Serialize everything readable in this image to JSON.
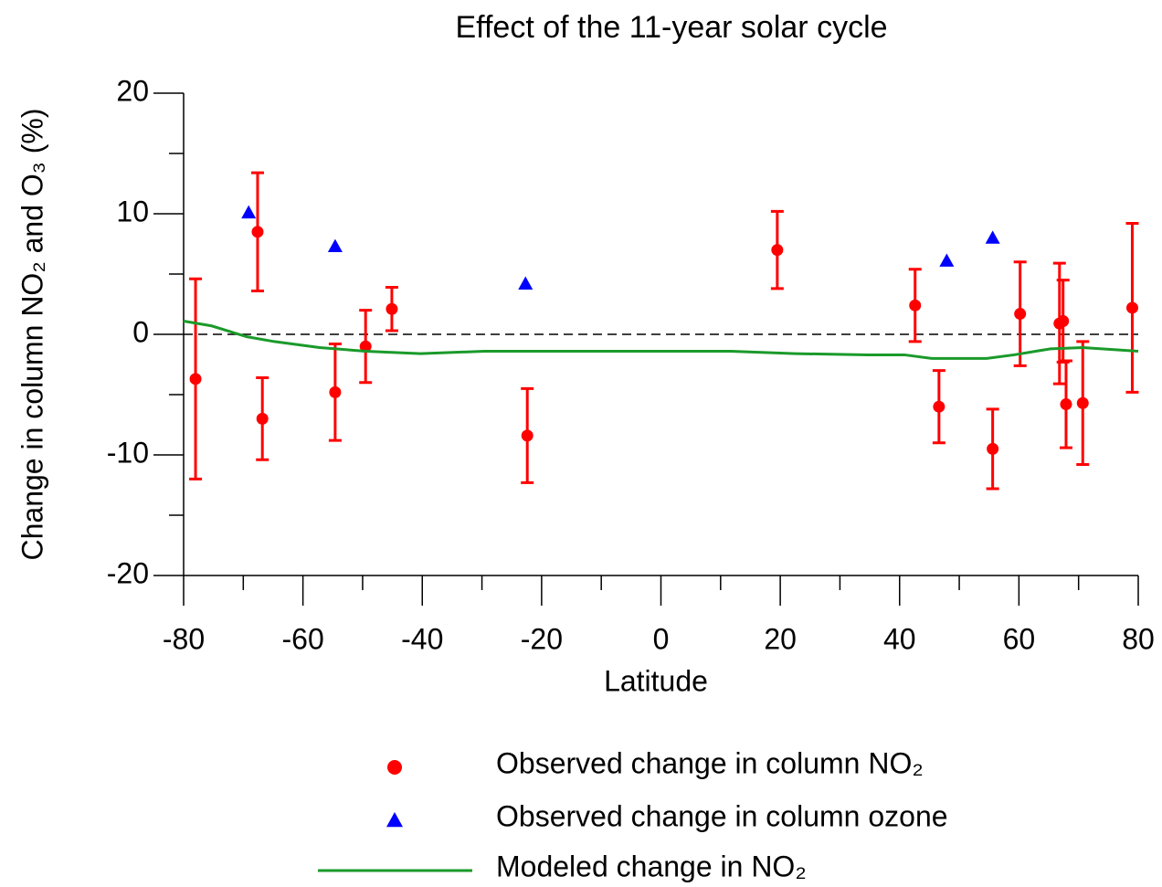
{
  "chart_data": {
    "type": "scatter",
    "title": "Effect of the 11-year solar cycle",
    "x_label": "Latitude",
    "y_label": "Change in column NO₂ and O₃ (%)",
    "xlim": [
      -80,
      80
    ],
    "xticks": [
      -80,
      -60,
      -40,
      -20,
      0,
      20,
      40,
      60,
      80
    ],
    "xminorticks": [
      -70,
      -50,
      -30,
      -10,
      10,
      30,
      50,
      70
    ],
    "ylim": [
      -20,
      20
    ],
    "yticks": [
      -20,
      -10,
      0,
      10,
      20
    ],
    "yminorticks": [
      -15,
      -5,
      5,
      15
    ],
    "reference_line": 0,
    "series": [
      {
        "name": "Observed change in column NO₂",
        "color": "#ff0000",
        "marker": "circle",
        "x": [
          -78.0,
          -67.6,
          -66.8,
          -54.6,
          -49.5,
          -45.1,
          -22.4,
          19.5,
          42.6,
          46.6,
          55.6,
          60.2,
          66.8,
          67.4,
          67.9,
          70.7,
          79.0
        ],
        "values": [
          -3.7,
          8.5,
          -7.0,
          -4.8,
          -1.0,
          2.1,
          -8.4,
          7.0,
          2.4,
          -6.0,
          -9.5,
          1.7,
          0.9,
          1.1,
          -5.8,
          -5.7,
          2.2
        ],
        "errors": [
          8.3,
          4.9,
          3.4,
          4.0,
          3.0,
          1.8,
          3.9,
          3.2,
          3.0,
          3.0,
          3.3,
          4.3,
          5.0,
          3.4,
          3.6,
          5.1,
          7.0
        ]
      },
      {
        "name": "Observed change in column ozone",
        "color": "#0000ff",
        "marker": "triangle",
        "x": [
          -69.1,
          -54.6,
          -22.7,
          47.9,
          55.6
        ],
        "values": [
          10.1,
          7.3,
          4.2,
          6.1,
          8.0
        ]
      },
      {
        "name": "Modeled change in NO₂",
        "color": "#1a9a2a",
        "marker": "line",
        "x": [
          -80,
          -75.3,
          -69.4,
          -64.8,
          -57.2,
          -49.5,
          -40.3,
          -29.6,
          -18.9,
          -0.5,
          11.7,
          22.5,
          34.7,
          40.8,
          45.4,
          54.6,
          59.2,
          65.3,
          70.7,
          80
        ],
        "values": [
          1.1,
          0.7,
          -0.2,
          -0.6,
          -1.1,
          -1.4,
          -1.6,
          -1.4,
          -1.4,
          -1.4,
          -1.4,
          -1.6,
          -1.7,
          -1.7,
          -2.0,
          -2.0,
          -1.7,
          -1.2,
          -1.1,
          -1.4
        ]
      }
    ]
  }
}
